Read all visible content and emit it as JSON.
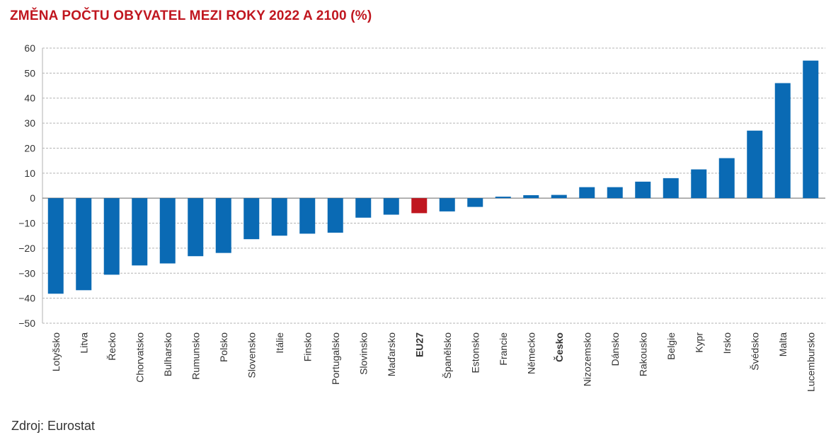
{
  "chart_data": {
    "type": "bar",
    "title": "ZMĚNA POČTU OBYVATEL MEZI ROKY 2022 A 2100 (%)",
    "xlabel": "",
    "ylabel": "",
    "ylim": [
      -50,
      60
    ],
    "yticks": [
      60,
      50,
      40,
      30,
      20,
      10,
      0,
      -10,
      -20,
      -30,
      -40,
      -50
    ],
    "grid": true,
    "categories": [
      "Lotyšsko",
      "Litva",
      "Řecko",
      "Chorvatsko",
      "Bulharsko",
      "Rumunsko",
      "Polsko",
      "Slovensko",
      "Itálie",
      "Finsko",
      "Portugalsko",
      "Slovinsko",
      "Maďarsko",
      "EU27",
      "Španělsko",
      "Estonsko",
      "Francie",
      "Německo",
      "Česko",
      "Nizozemsko",
      "Dánsko",
      "Rakousko",
      "Belgie",
      "Kypr",
      "Irsko",
      "Švédsko",
      "Malta",
      "Lucembursko"
    ],
    "values": [
      -38.2,
      -36.8,
      -30.6,
      -26.9,
      -26.1,
      -23.2,
      -21.9,
      -16.4,
      -15.0,
      -14.2,
      -13.8,
      -7.8,
      -6.6,
      -6.0,
      -5.3,
      -3.5,
      0.6,
      1.2,
      1.3,
      4.4,
      4.4,
      6.6,
      8.0,
      11.5,
      16.0,
      27.0,
      46.0,
      55.0
    ],
    "highlight": [
      "EU27"
    ],
    "bold_labels": [
      "EU27",
      "Česko"
    ],
    "colors": {
      "bar": "#0a6ab4",
      "highlight": "#c0161f",
      "grid": "#b3b3b3",
      "zero_line": "#666666"
    }
  },
  "source": "Zdroj: Eurostat"
}
